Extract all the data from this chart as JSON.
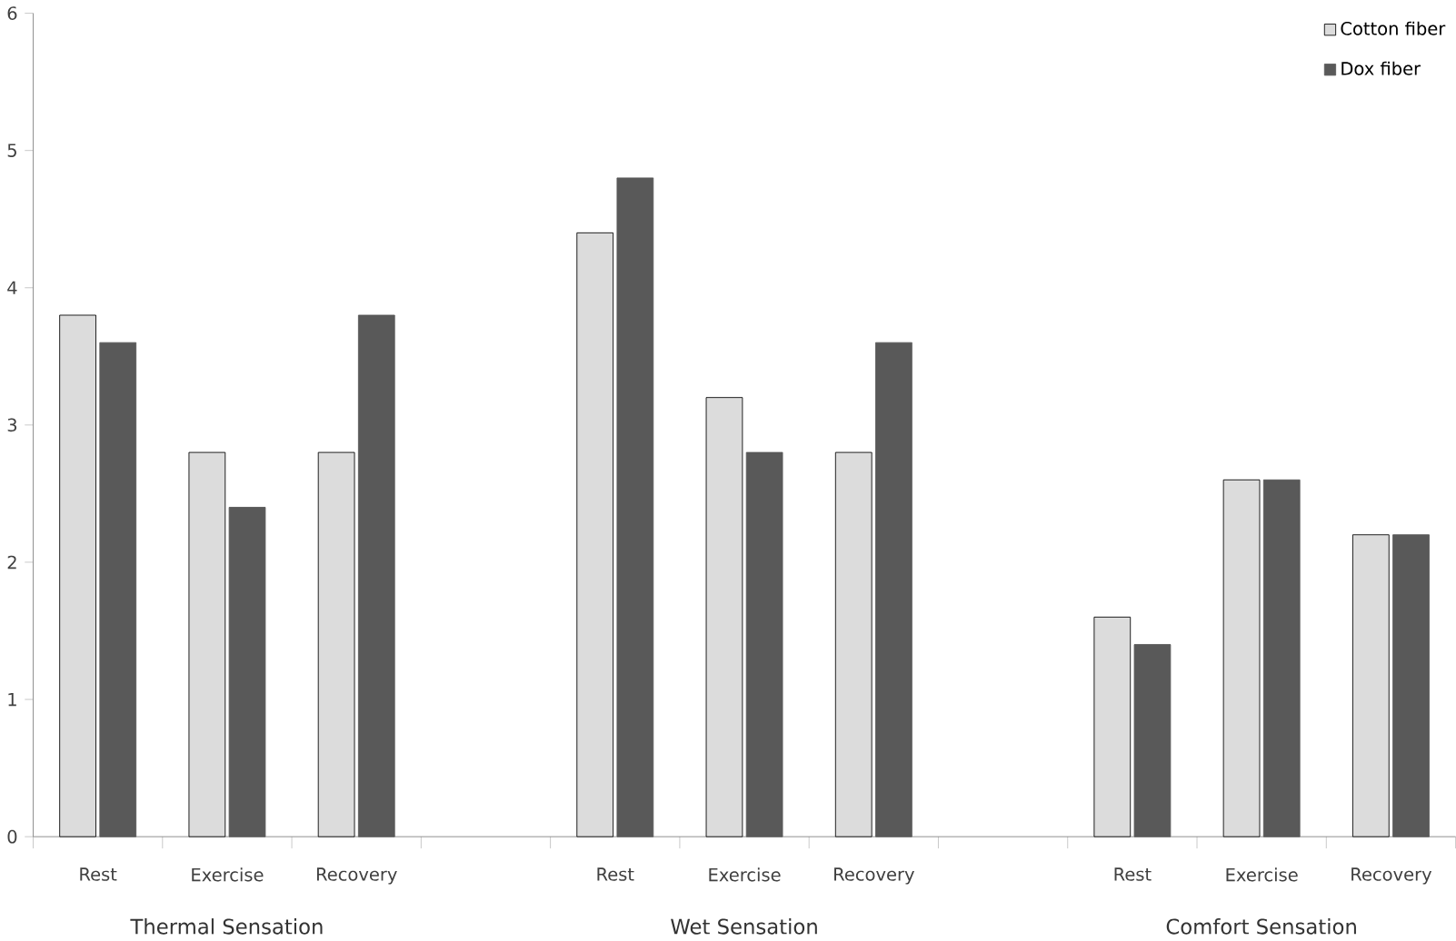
{
  "chart_data": {
    "type": "bar",
    "categories": [
      "Rest",
      "Exercise",
      "Recovery",
      null,
      "Rest",
      "Exercise",
      "Recovery",
      null,
      "Rest",
      "Exercise",
      "Recovery"
    ],
    "series": [
      {
        "name": "Cotton fiber",
        "color": "#dcdcdc",
        "values": [
          3.8,
          2.8,
          2.8,
          null,
          4.4,
          3.2,
          2.8,
          null,
          1.6,
          2.6,
          2.2
        ]
      },
      {
        "name": "Dox fiber",
        "color": "#595959",
        "values": [
          3.6,
          2.4,
          3.8,
          null,
          4.8,
          2.8,
          3.6,
          null,
          1.4,
          2.6,
          2.2
        ]
      }
    ],
    "annotations": [
      "Thermal Sensation",
      "Wet Sensation",
      "Comfort Sensation"
    ],
    "ylim": [
      0,
      6
    ],
    "yticks": [
      0,
      1,
      2,
      3,
      4,
      5,
      6
    ],
    "grid": false,
    "legend": "top right"
  }
}
